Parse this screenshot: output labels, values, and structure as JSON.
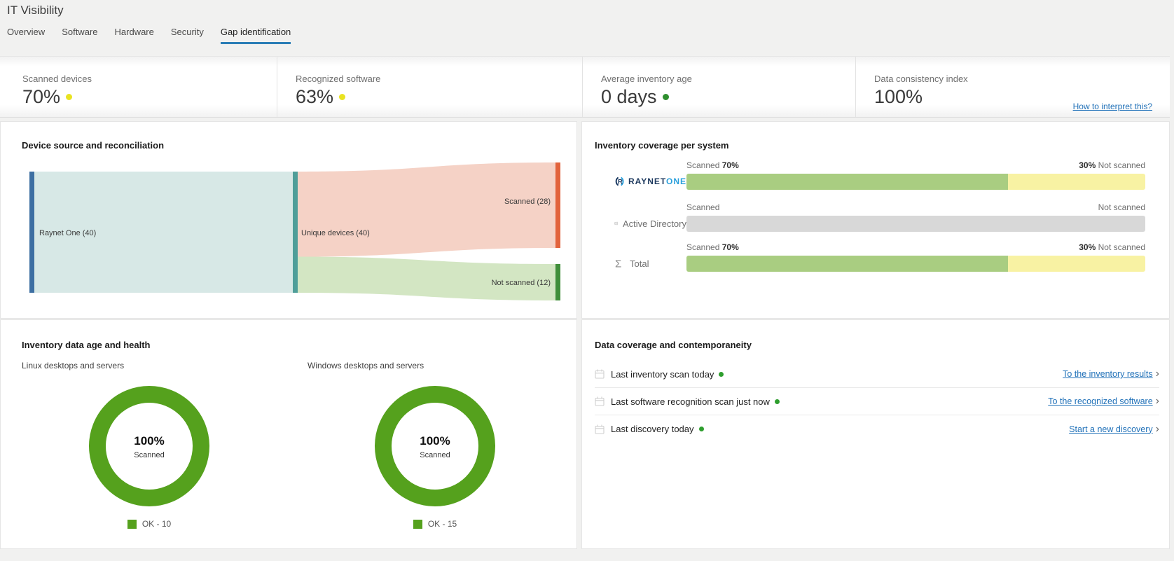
{
  "page": {
    "title": "IT Visibility"
  },
  "tabs": {
    "items": [
      {
        "label": "Overview"
      },
      {
        "label": "Software"
      },
      {
        "label": "Hardware"
      },
      {
        "label": "Security"
      },
      {
        "label": "Gap identification"
      }
    ],
    "active": "Gap identification"
  },
  "kpis": {
    "cards": [
      {
        "label": "Scanned devices",
        "value": "70%",
        "dot": "yellow"
      },
      {
        "label": "Recognized software",
        "value": "63%",
        "dot": "yellow"
      },
      {
        "label": "Average inventory age",
        "value": "0 days",
        "dot": "green"
      },
      {
        "label": "Data consistency index",
        "value": "100%",
        "dot": "none"
      }
    ],
    "help_link": "How to interpret this?"
  },
  "sankey": {
    "title": "Device source and reconciliation",
    "labels": {
      "source": "Raynet One (40)",
      "middle": "Unique devices (40)",
      "scanned": "Scanned (28)",
      "not_scanned": "Not scanned (12)"
    }
  },
  "coverage": {
    "title": "Inventory coverage per system",
    "rows": [
      {
        "system": "RaynetOne",
        "brand_part1": "RAYNET",
        "brand_part2": "ONE",
        "scanned_label": "Scanned",
        "scanned_pct": "70%",
        "not_scanned_pct": "30%",
        "not_scanned_label": "Not scanned",
        "seg_green": 70,
        "seg_yellow": 30,
        "seg_gray": 0
      },
      {
        "system": "Active Directory",
        "scanned_label": "Scanned",
        "scanned_pct": "",
        "not_scanned_pct": "",
        "not_scanned_label": "Not scanned",
        "seg_green": 0,
        "seg_yellow": 0,
        "seg_gray": 100
      },
      {
        "system": "Total",
        "scanned_label": "Scanned",
        "scanned_pct": "70%",
        "not_scanned_pct": "30%",
        "not_scanned_label": "Not scanned",
        "seg_green": 70,
        "seg_yellow": 30,
        "seg_gray": 0
      }
    ]
  },
  "health": {
    "title": "Inventory data age and health",
    "charts": [
      {
        "subtitle": "Linux desktops and servers",
        "value": "100%",
        "value_label": "Scanned",
        "legend": "OK - 10"
      },
      {
        "subtitle": "Windows desktops and servers",
        "value": "100%",
        "value_label": "Scanned",
        "legend": "OK - 15"
      }
    ]
  },
  "contemporaneity": {
    "title": "Data coverage and contemporaneity",
    "rows": [
      {
        "text": "Last inventory scan today",
        "status_dot": "green",
        "link": "To the inventory results"
      },
      {
        "text": "Last software recognition scan just now",
        "status_dot": "green",
        "link": "To the recognized software"
      },
      {
        "text": "Last discovery today",
        "status_dot": "green",
        "link": "Start a new discovery"
      }
    ]
  },
  "colors": {
    "tab_active_underline": "#2a7db6",
    "link_blue": "#2272b9",
    "kpi_dot_yellow": "#e9e321",
    "kpi_dot_green": "#2e8f2e",
    "bar_scanned_green": "#a9cd81",
    "bar_not_scanned_yellow": "#f8f2a3",
    "bar_empty_gray": "#d8d8d8",
    "donut_green": "#55a11d",
    "sankey_source_node": "#3d6fa2",
    "sankey_middle_node": "#4f9e99",
    "sankey_scanned_node": "#e2633c",
    "sankey_not_scanned_node": "#3f8e3a",
    "sankey_flow_teal": "#d7e8e6",
    "sankey_flow_pink": "#f5d2c6",
    "sankey_flow_green": "#d3e6c3"
  },
  "chart_data": [
    {
      "type": "sankey",
      "title": "Device source and reconciliation",
      "nodes": [
        "Raynet One",
        "Unique devices",
        "Scanned",
        "Not scanned"
      ],
      "links": [
        {
          "source": "Raynet One",
          "target": "Unique devices",
          "value": 40
        },
        {
          "source": "Unique devices",
          "target": "Scanned",
          "value": 28
        },
        {
          "source": "Unique devices",
          "target": "Not scanned",
          "value": 12
        }
      ]
    },
    {
      "type": "bar",
      "title": "Inventory coverage per system",
      "categories": [
        "RaynetOne",
        "Active Directory",
        "Total"
      ],
      "series": [
        {
          "name": "Scanned",
          "values": [
            70,
            null,
            70
          ]
        },
        {
          "name": "Not scanned",
          "values": [
            30,
            null,
            30
          ]
        }
      ],
      "unit": "%",
      "orientation": "horizontal",
      "stacked": true,
      "xlim": [
        0,
        100
      ]
    },
    {
      "type": "pie",
      "title": "Linux desktops and servers",
      "categories": [
        "OK"
      ],
      "values": [
        10
      ],
      "center_label": "100%",
      "center_sublabel": "Scanned",
      "legend": [
        "OK - 10"
      ]
    },
    {
      "type": "pie",
      "title": "Windows desktops and servers",
      "categories": [
        "OK"
      ],
      "values": [
        15
      ],
      "center_label": "100%",
      "center_sublabel": "Scanned",
      "legend": [
        "OK - 15"
      ]
    }
  ]
}
